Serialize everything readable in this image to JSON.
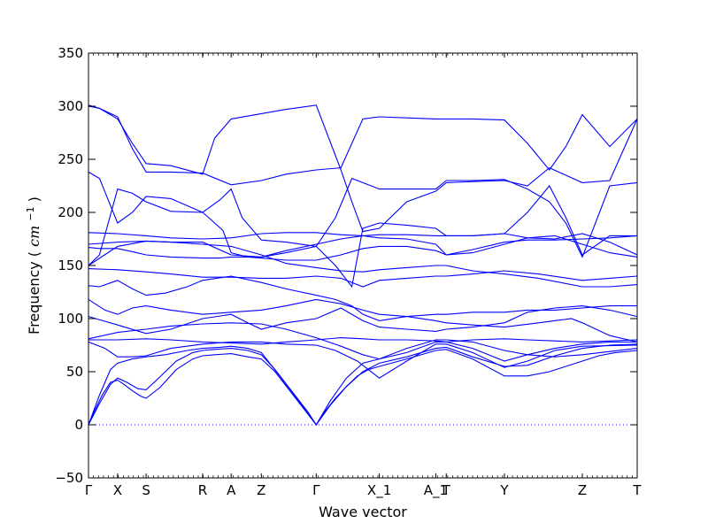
{
  "chart_data": {
    "type": "line",
    "title": "",
    "xlabel": "Wave vector",
    "ylabel": "Frequency",
    "ylabel_unit": "cm",
    "ylabel_unit_exponent": "−1",
    "ylim": [
      -50,
      350
    ],
    "yticks": [
      -50,
      0,
      50,
      100,
      150,
      200,
      250,
      300,
      350
    ],
    "ytick_labels": [
      "−50",
      "0",
      "50",
      "100",
      "150",
      "200",
      "250",
      "300",
      "350"
    ],
    "xlim": [
      0,
      1
    ],
    "high_symmetry_points": [
      {
        "label": "Γ",
        "x": 0.0
      },
      {
        "label": "X",
        "x": 0.053
      },
      {
        "label": "S",
        "x": 0.105
      },
      {
        "label": "R",
        "x": 0.208
      },
      {
        "label": "A",
        "x": 0.26
      },
      {
        "label": "Z",
        "x": 0.315
      },
      {
        "label": "Γ",
        "x": 0.415
      },
      {
        "label": "X_1",
        "x": 0.53
      },
      {
        "label": "A_1",
        "x": 0.633
      },
      {
        "label": "T",
        "x": 0.652
      },
      {
        "label": "Y",
        "x": 0.758
      },
      {
        "label": "Z",
        "x": 0.9
      },
      {
        "label": "T",
        "x": 1.0
      }
    ],
    "zero_line": 0,
    "colors": {
      "bands": "#0000ff",
      "zero_line": "#0000ff",
      "axes": "#000000"
    },
    "series": [
      {
        "x": [
          0,
          0.01,
          0.025,
          0.04,
          0.053,
          0.065,
          0.08,
          0.095,
          0.105,
          0.13,
          0.16,
          0.19,
          0.208,
          0.23,
          0.26,
          0.29,
          0.315,
          0.34,
          0.37,
          0.4,
          0.415,
          0.43,
          0.45,
          0.47,
          0.49,
          0.51,
          0.53,
          0.58,
          0.633,
          0.652,
          0.7,
          0.758,
          0.8,
          0.84,
          0.87,
          0.9,
          0.93,
          0.96,
          1.0
        ],
        "y": [
          0,
          12,
          28,
          40,
          42,
          38,
          32,
          27,
          25,
          35,
          52,
          62,
          65,
          66,
          67,
          64,
          62,
          50,
          30,
          10,
          0,
          12,
          25,
          36,
          46,
          52,
          55,
          62,
          70,
          71,
          62,
          46,
          46,
          50,
          55,
          60,
          65,
          68,
          70
        ]
      },
      {
        "x": [
          0,
          0.02,
          0.04,
          0.053,
          0.07,
          0.09,
          0.105,
          0.13,
          0.16,
          0.19,
          0.208,
          0.23,
          0.26,
          0.29,
          0.315,
          0.34,
          0.37,
          0.4,
          0.415,
          0.44,
          0.47,
          0.5,
          0.53,
          0.58,
          0.633,
          0.652,
          0.7,
          0.758,
          0.8,
          0.85,
          0.9,
          0.95,
          1.0
        ],
        "y": [
          0,
          20,
          38,
          44,
          40,
          34,
          33,
          45,
          60,
          68,
          70,
          71,
          72,
          70,
          66,
          52,
          32,
          12,
          0,
          18,
          36,
          50,
          58,
          64,
          72,
          73,
          64,
          55,
          56,
          65,
          72,
          75,
          76
        ]
      },
      {
        "x": [
          0,
          0.02,
          0.04,
          0.053,
          0.08,
          0.105,
          0.14,
          0.18,
          0.208,
          0.24,
          0.26,
          0.29,
          0.315,
          0.35,
          0.39,
          0.415,
          0.44,
          0.47,
          0.5,
          0.53,
          0.58,
          0.633,
          0.652,
          0.7,
          0.758,
          0.8,
          0.85,
          0.9,
          0.95,
          1.0
        ],
        "y": [
          0,
          28,
          52,
          58,
          62,
          64,
          66,
          70,
          72,
          73,
          74,
          72,
          68,
          45,
          18,
          0,
          22,
          44,
          58,
          62,
          68,
          78,
          78,
          72,
          60,
          66,
          72,
          76,
          78,
          78
        ]
      },
      {
        "x": [
          0,
          0.03,
          0.053,
          0.08,
          0.105,
          0.15,
          0.208,
          0.26,
          0.315,
          0.36,
          0.415,
          0.45,
          0.49,
          0.53,
          0.58,
          0.633,
          0.652,
          0.7,
          0.758,
          0.8,
          0.85,
          0.9,
          1.0
        ],
        "y": [
          78,
          72,
          64,
          64,
          65,
          72,
          76,
          78,
          78,
          76,
          75,
          70,
          60,
          44,
          60,
          76,
          76,
          68,
          54,
          60,
          70,
          74,
          75
        ]
      },
      {
        "x": [
          0,
          0.053,
          0.105,
          0.15,
          0.208,
          0.26,
          0.315,
          0.36,
          0.415,
          0.46,
          0.5,
          0.53,
          0.58,
          0.633,
          0.652,
          0.7,
          0.758,
          0.8,
          0.85,
          0.9,
          1.0
        ],
        "y": [
          80,
          80,
          81,
          80,
          78,
          77,
          76,
          78,
          80,
          82,
          81,
          80,
          80,
          79,
          78,
          80,
          81,
          80,
          79,
          78,
          80
        ]
      },
      {
        "x": [
          0,
          0.053,
          0.105,
          0.15,
          0.208,
          0.26,
          0.315,
          0.36,
          0.415,
          0.46,
          0.5,
          0.53,
          0.58,
          0.633,
          0.652,
          0.7,
          0.758,
          0.8,
          0.85,
          0.9,
          1.0
        ],
        "y": [
          81,
          87,
          90,
          93,
          95,
          96,
          95,
          90,
          82,
          74,
          66,
          62,
          72,
          80,
          80,
          78,
          70,
          66,
          64,
          66,
          72
        ]
      },
      {
        "x": [
          0,
          0.053,
          0.105,
          0.15,
          0.208,
          0.26,
          0.29,
          0.315,
          0.36,
          0.415,
          0.46,
          0.5,
          0.53,
          0.58,
          0.633,
          0.652,
          0.7,
          0.758,
          0.8,
          0.85,
          0.9,
          0.95,
          1.0
        ],
        "y": [
          102,
          94,
          86,
          90,
          100,
          104,
          96,
          90,
          96,
          100,
          110,
          98,
          92,
          90,
          88,
          90,
          92,
          96,
          106,
          110,
          112,
          108,
          102
        ]
      },
      {
        "x": [
          0,
          0.03,
          0.053,
          0.08,
          0.105,
          0.15,
          0.208,
          0.26,
          0.315,
          0.36,
          0.415,
          0.46,
          0.5,
          0.53,
          0.58,
          0.633,
          0.652,
          0.7,
          0.758,
          0.82,
          0.88,
          0.9,
          0.95,
          1.0
        ],
        "y": [
          118,
          108,
          104,
          110,
          112,
          108,
          104,
          106,
          108,
          112,
          118,
          114,
          108,
          104,
          102,
          98,
          96,
          94,
          92,
          96,
          100,
          96,
          84,
          78
        ]
      },
      {
        "x": [
          0,
          0.02,
          0.053,
          0.08,
          0.105,
          0.14,
          0.18,
          0.208,
          0.26,
          0.315,
          0.36,
          0.415,
          0.45,
          0.48,
          0.5,
          0.53,
          0.58,
          0.633,
          0.652,
          0.7,
          0.758,
          0.8,
          0.85,
          0.9,
          0.95,
          1.0
        ],
        "y": [
          131,
          130,
          136,
          128,
          122,
          124,
          130,
          136,
          140,
          134,
          128,
          122,
          118,
          112,
          104,
          98,
          102,
          104,
          104,
          106,
          106,
          108,
          108,
          110,
          112,
          112
        ]
      },
      {
        "x": [
          0,
          0.053,
          0.105,
          0.15,
          0.208,
          0.26,
          0.315,
          0.36,
          0.415,
          0.46,
          0.5,
          0.53,
          0.58,
          0.633,
          0.652,
          0.7,
          0.758,
          0.82,
          0.9,
          0.95,
          1.0
        ],
        "y": [
          147,
          146,
          144,
          142,
          139,
          139,
          138,
          138,
          140,
          138,
          130,
          136,
          138,
          140,
          140,
          142,
          145,
          142,
          136,
          138,
          140
        ]
      },
      {
        "x": [
          0,
          0.053,
          0.105,
          0.15,
          0.208,
          0.26,
          0.315,
          0.36,
          0.415,
          0.46,
          0.5,
          0.53,
          0.58,
          0.633,
          0.652,
          0.7,
          0.758,
          0.82,
          0.9,
          0.95,
          1.0
        ],
        "y": [
          150,
          168,
          173,
          172,
          170,
          168,
          160,
          152,
          148,
          145,
          144,
          146,
          148,
          150,
          150,
          145,
          142,
          138,
          130,
          130,
          132
        ]
      },
      {
        "x": [
          0,
          0.02,
          0.053,
          0.08,
          0.105,
          0.15,
          0.208,
          0.24,
          0.26,
          0.29,
          0.315,
          0.36,
          0.415,
          0.46,
          0.5,
          0.53,
          0.58,
          0.633,
          0.652,
          0.7,
          0.758,
          0.8,
          0.85,
          0.9,
          0.95,
          1.0
        ],
        "y": [
          167,
          166,
          166,
          163,
          160,
          158,
          157,
          157,
          158,
          158,
          157,
          155,
          155,
          160,
          166,
          168,
          168,
          164,
          160,
          162,
          170,
          176,
          178,
          170,
          162,
          158
        ]
      },
      {
        "x": [
          0,
          0.053,
          0.105,
          0.15,
          0.208,
          0.26,
          0.315,
          0.36,
          0.415,
          0.46,
          0.5,
          0.53,
          0.58,
          0.633,
          0.652,
          0.7,
          0.758,
          0.8,
          0.85,
          0.9,
          0.95,
          1.0
        ],
        "y": [
          170,
          172,
          173,
          172,
          172,
          160,
          158,
          164,
          170,
          175,
          178,
          176,
          175,
          170,
          160,
          165,
          172,
          174,
          174,
          175,
          176,
          178
        ]
      },
      {
        "x": [
          0,
          0.053,
          0.105,
          0.15,
          0.208,
          0.26,
          0.315,
          0.36,
          0.415,
          0.46,
          0.5,
          0.53,
          0.58,
          0.633,
          0.652,
          0.7,
          0.758,
          0.8,
          0.85,
          0.9,
          0.95,
          1.0
        ],
        "y": [
          181,
          180,
          178,
          176,
          175,
          176,
          180,
          181,
          181,
          179,
          178,
          179,
          179,
          178,
          178,
          178,
          180,
          176,
          175,
          180,
          172,
          160
        ]
      },
      {
        "x": [
          0,
          0.02,
          0.053,
          0.08,
          0.105,
          0.15,
          0.208,
          0.24,
          0.26,
          0.28,
          0.315,
          0.36,
          0.415,
          0.45,
          0.48,
          0.5,
          0.53,
          0.58,
          0.633,
          0.652,
          0.7,
          0.758,
          0.8,
          0.84,
          0.87,
          0.9,
          0.95,
          1.0
        ],
        "y": [
          238,
          232,
          190,
          200,
          215,
          213,
          200,
          212,
          222,
          195,
          174,
          172,
          168,
          150,
          130,
          185,
          190,
          188,
          185,
          178,
          178,
          180,
          200,
          225,
          195,
          160,
          178,
          178
        ]
      },
      {
        "x": [
          0,
          0.02,
          0.053,
          0.08,
          0.105,
          0.15,
          0.208,
          0.23,
          0.245,
          0.26,
          0.29,
          0.315,
          0.36,
          0.415,
          0.45,
          0.48,
          0.5,
          0.53,
          0.58,
          0.633,
          0.652,
          0.7,
          0.758,
          0.8,
          0.84,
          0.87,
          0.9,
          0.95,
          1.0
        ],
        "y": [
          150,
          160,
          222,
          218,
          210,
          201,
          200,
          190,
          183,
          162,
          158,
          158,
          162,
          168,
          195,
          232,
          228,
          222,
          222,
          222,
          230,
          230,
          231,
          222,
          210,
          190,
          158,
          225,
          228
        ]
      },
      {
        "x": [
          0,
          0.02,
          0.053,
          0.08,
          0.105,
          0.15,
          0.208,
          0.23,
          0.26,
          0.315,
          0.36,
          0.415,
          0.46,
          0.48,
          0.5,
          0.53,
          0.58,
          0.633,
          0.652,
          0.7,
          0.758,
          0.8,
          0.84,
          0.87,
          0.9,
          0.95,
          1.0
        ],
        "y": [
          301,
          298,
          288,
          265,
          246,
          244,
          236,
          270,
          288,
          293,
          297,
          301,
          240,
          210,
          182,
          185,
          210,
          220,
          228,
          229,
          230,
          225,
          242,
          235,
          228,
          230,
          288
        ]
      },
      {
        "x": [
          0,
          0.02,
          0.053,
          0.08,
          0.105,
          0.15,
          0.208,
          0.26,
          0.315,
          0.36,
          0.415,
          0.46,
          0.5,
          0.53,
          0.58,
          0.633,
          0.652,
          0.7,
          0.758,
          0.8,
          0.84,
          0.87,
          0.9,
          0.95,
          1.0
        ],
        "y": [
          300,
          298,
          290,
          260,
          238,
          238,
          237,
          226,
          230,
          236,
          240,
          242,
          288,
          290,
          289,
          288,
          288,
          288,
          287,
          265,
          240,
          262,
          292,
          262,
          288
        ]
      }
    ]
  }
}
